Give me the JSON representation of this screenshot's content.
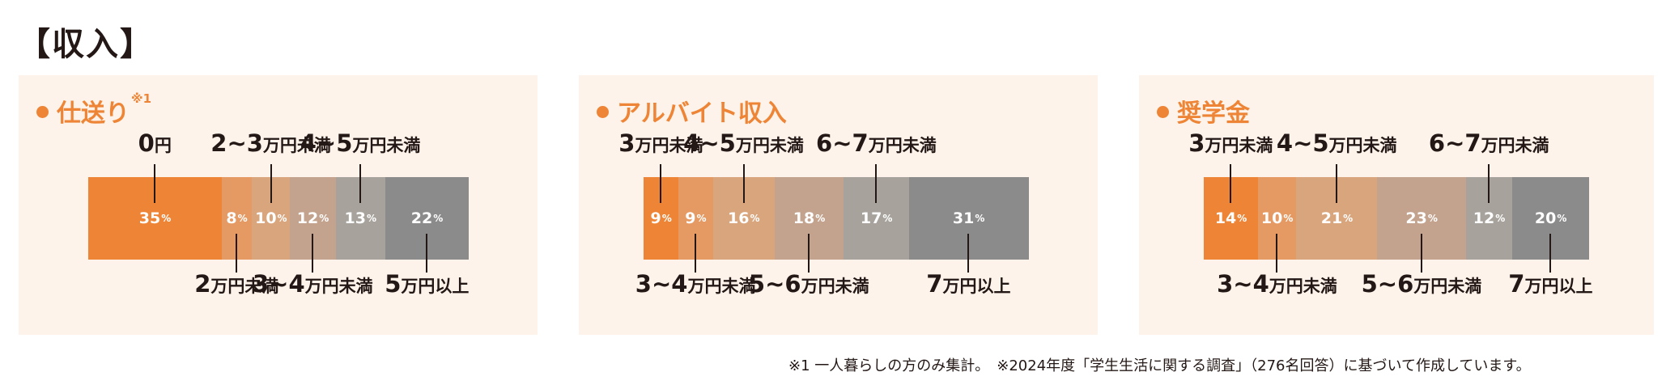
{
  "page_title": "【収入】",
  "footnote": "※1 一人暮らしの方のみ集計。　※2024年度「学生生活に関する調査」（276名回答）に基づいて作成しています。",
  "percent_suffix": "%",
  "chart_data": [
    {
      "type": "bar",
      "orientation": "horizontal-stacked",
      "title": "仕送り",
      "title_note": "※1",
      "categories": [
        "0円",
        "2万円未満",
        "2~3万円未満",
        "3~4万円未満",
        "4~5万円未満",
        "5万円以上"
      ],
      "category_labels": [
        {
          "main": "0",
          "unit": "円"
        },
        {
          "main": "2",
          "unit": "万円未満"
        },
        {
          "main": "2~3",
          "unit": "万円未満"
        },
        {
          "main": "3~4",
          "unit": "万円未満"
        },
        {
          "main": "4~5",
          "unit": "万円未満"
        },
        {
          "main": "5",
          "unit": "万円以上"
        }
      ],
      "values": [
        35,
        8,
        10,
        12,
        13,
        22
      ],
      "colors": [
        "#ee8536",
        "#e59a64",
        "#d9a57c",
        "#c3a38d",
        "#a7a39c",
        "#8b8b8b"
      ]
    },
    {
      "type": "bar",
      "orientation": "horizontal-stacked",
      "title": "アルバイト収入",
      "categories": [
        "3万円未満",
        "3~4万円未満",
        "4~5万円未満",
        "5~6万円未満",
        "6~7万円未満",
        "7万円以上"
      ],
      "category_labels": [
        {
          "main": "3",
          "unit": "万円未満"
        },
        {
          "main": "3~4",
          "unit": "万円未満"
        },
        {
          "main": "4~5",
          "unit": "万円未満"
        },
        {
          "main": "5~6",
          "unit": "万円未満"
        },
        {
          "main": "6~7",
          "unit": "万円未満"
        },
        {
          "main": "7",
          "unit": "万円以上"
        }
      ],
      "values": [
        9,
        9,
        16,
        18,
        17,
        31
      ],
      "colors": [
        "#ee8536",
        "#e59a64",
        "#d9a57c",
        "#c3a38d",
        "#a7a39c",
        "#8b8b8b"
      ]
    },
    {
      "type": "bar",
      "orientation": "horizontal-stacked",
      "title": "奨学金",
      "categories": [
        "3万円未満",
        "3~4万円未満",
        "4~5万円未満",
        "5~6万円未満",
        "6~7万円未満",
        "7万円以上"
      ],
      "category_labels": [
        {
          "main": "3",
          "unit": "万円未満"
        },
        {
          "main": "3~4",
          "unit": "万円未満"
        },
        {
          "main": "4~5",
          "unit": "万円未満"
        },
        {
          "main": "5~6",
          "unit": "万円未満"
        },
        {
          "main": "6~7",
          "unit": "万円未満"
        },
        {
          "main": "7",
          "unit": "万円以上"
        }
      ],
      "values": [
        14,
        10,
        21,
        23,
        12,
        20
      ],
      "colors": [
        "#ee8536",
        "#e59a64",
        "#d9a57c",
        "#c3a38d",
        "#a7a39c",
        "#8b8b8b"
      ]
    }
  ]
}
